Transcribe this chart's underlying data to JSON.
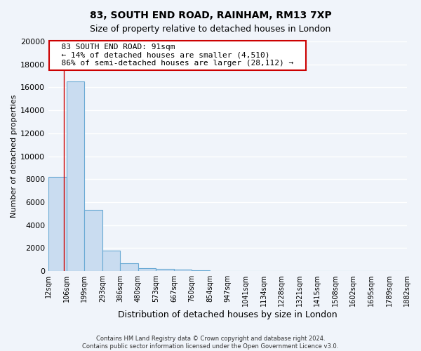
{
  "title": "83, SOUTH END ROAD, RAINHAM, RM13 7XP",
  "subtitle": "Size of property relative to detached houses in London",
  "xlabel": "Distribution of detached houses by size in London",
  "ylabel": "Number of detached properties",
  "bin_labels": [
    "12sqm",
    "106sqm",
    "199sqm",
    "293sqm",
    "386sqm",
    "480sqm",
    "573sqm",
    "667sqm",
    "760sqm",
    "854sqm",
    "947sqm",
    "1041sqm",
    "1134sqm",
    "1228sqm",
    "1321sqm",
    "1415sqm",
    "1508sqm",
    "1602sqm",
    "1695sqm",
    "1789sqm",
    "1882sqm"
  ],
  "bar_values": [
    8200,
    16500,
    5300,
    1750,
    700,
    280,
    170,
    100,
    60,
    30,
    15,
    10,
    8,
    6,
    5,
    4,
    3,
    3,
    2,
    2
  ],
  "bar_color": "#c9dcf0",
  "bar_edge_color": "#6aaad4",
  "ylim": [
    0,
    20000
  ],
  "yticks": [
    0,
    2000,
    4000,
    6000,
    8000,
    10000,
    12000,
    14000,
    16000,
    18000,
    20000
  ],
  "annotation_title": "83 SOUTH END ROAD: 91sqm",
  "annotation_line1": "← 14% of detached houses are smaller (4,510)",
  "annotation_line2": "86% of semi-detached houses are larger (28,112) →",
  "annotation_box_color": "#ffffff",
  "annotation_box_edge_color": "#cc0000",
  "footer_line1": "Contains HM Land Registry data © Crown copyright and database right 2024.",
  "footer_line2": "Contains public sector information licensed under the Open Government Licence v3.0.",
  "background_color": "#f0f4fa",
  "plot_bg_color": "#f0f4fa",
  "grid_color": "#ffffff",
  "red_line_color": "#cc0000"
}
